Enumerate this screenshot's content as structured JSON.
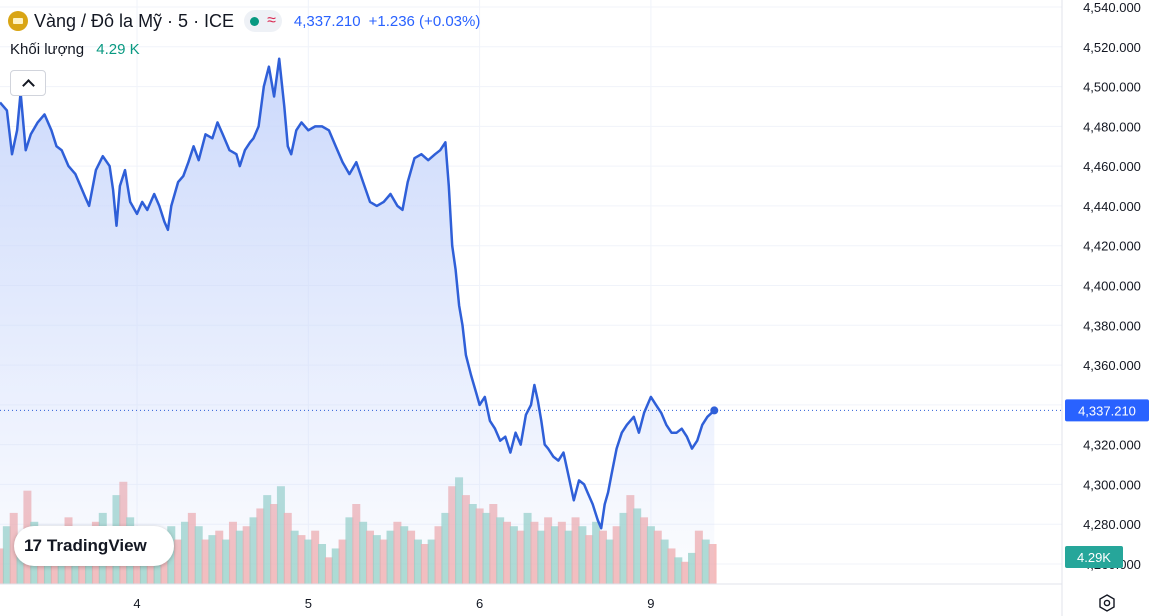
{
  "header": {
    "symbol": "Vàng / Đô la Mỹ · 5 · ICE",
    "approx_symbol": "≈",
    "price": "4,337.210",
    "change": "+1.236 (+0.03%)",
    "volume_label": "Khối lượng",
    "volume_value": "4.29 K"
  },
  "logo_text": "TradingView",
  "colors": {
    "line": "#2f5fd8",
    "area_top": "#c9d7fb",
    "vol_up": "#8fcfc3",
    "vol_down": "#f2a5a5",
    "price_label_bg": "#2962ff",
    "volume_label_bg": "#26a69a"
  },
  "chart_data": {
    "type": "area",
    "ylim": [
      4260,
      4540
    ],
    "yticks": [
      4260,
      4280,
      4300,
      4320,
      4340,
      4360,
      4380,
      4400,
      4420,
      4440,
      4460,
      4480,
      4500,
      4520,
      4540
    ],
    "ytick_labels": [
      "4,260.000",
      "4,280.000",
      "4,300.000",
      "4,320.000",
      "4,340.000",
      "4,360.000",
      "4,380.000",
      "4,400.000",
      "4,420.000",
      "4,440.000",
      "4,460.000",
      "4,480.000",
      "4,500.000",
      "4,520.000",
      "4,540.000"
    ],
    "xlim": [
      3.2,
      9.4
    ],
    "xticks": [
      4,
      5,
      6,
      9
    ],
    "xtick_positions": [
      4,
      5,
      6,
      7
    ],
    "xtick_labels": [
      "4",
      "5",
      "6",
      "9"
    ],
    "last_price_label": "4,337.210",
    "last_volume_label": "4.29K",
    "series": [
      {
        "values": [
          [
            3.2,
            4492
          ],
          [
            3.24,
            4488
          ],
          [
            3.27,
            4466
          ],
          [
            3.3,
            4478
          ],
          [
            3.32,
            4497
          ],
          [
            3.35,
            4468
          ],
          [
            3.38,
            4476
          ],
          [
            3.42,
            4482
          ],
          [
            3.46,
            4486
          ],
          [
            3.5,
            4478
          ],
          [
            3.53,
            4470
          ],
          [
            3.56,
            4468
          ],
          [
            3.6,
            4460
          ],
          [
            3.64,
            4456
          ],
          [
            3.67,
            4450
          ],
          [
            3.7,
            4444
          ],
          [
            3.72,
            4440
          ],
          [
            3.76,
            4458
          ],
          [
            3.8,
            4465
          ],
          [
            3.84,
            4460
          ],
          [
            3.86,
            4448
          ],
          [
            3.88,
            4430
          ],
          [
            3.9,
            4450
          ],
          [
            3.93,
            4458
          ],
          [
            3.96,
            4442
          ],
          [
            4.0,
            4436
          ],
          [
            4.03,
            4442
          ],
          [
            4.06,
            4438
          ],
          [
            4.1,
            4446
          ],
          [
            4.13,
            4440
          ],
          [
            4.16,
            4432
          ],
          [
            4.18,
            4428
          ],
          [
            4.2,
            4440
          ],
          [
            4.24,
            4452
          ],
          [
            4.27,
            4455
          ],
          [
            4.3,
            4462
          ],
          [
            4.33,
            4470
          ],
          [
            4.36,
            4463
          ],
          [
            4.4,
            4476
          ],
          [
            4.44,
            4474
          ],
          [
            4.47,
            4482
          ],
          [
            4.5,
            4476
          ],
          [
            4.54,
            4468
          ],
          [
            4.58,
            4466
          ],
          [
            4.6,
            4460
          ],
          [
            4.63,
            4468
          ],
          [
            4.66,
            4472
          ],
          [
            4.68,
            4474
          ],
          [
            4.71,
            4480
          ],
          [
            4.74,
            4500
          ],
          [
            4.77,
            4510
          ],
          [
            4.8,
            4495
          ],
          [
            4.83,
            4514
          ],
          [
            4.86,
            4490
          ],
          [
            4.88,
            4470
          ],
          [
            4.9,
            4466
          ],
          [
            4.93,
            4478
          ],
          [
            4.96,
            4482
          ],
          [
            5.0,
            4478
          ],
          [
            5.04,
            4480
          ],
          [
            5.08,
            4480
          ],
          [
            5.12,
            4478
          ],
          [
            5.16,
            4470
          ],
          [
            5.2,
            4462
          ],
          [
            5.24,
            4456
          ],
          [
            5.28,
            4462
          ],
          [
            5.32,
            4452
          ],
          [
            5.36,
            4442
          ],
          [
            5.4,
            4440
          ],
          [
            5.44,
            4442
          ],
          [
            5.48,
            4446
          ],
          [
            5.52,
            4440
          ],
          [
            5.55,
            4438
          ],
          [
            5.58,
            4452
          ],
          [
            5.62,
            4464
          ],
          [
            5.66,
            4466
          ],
          [
            5.7,
            4463
          ],
          [
            5.74,
            4466
          ],
          [
            5.77,
            4468
          ],
          [
            5.8,
            4472
          ],
          [
            5.82,
            4450
          ],
          [
            5.84,
            4420
          ],
          [
            5.86,
            4408
          ],
          [
            5.88,
            4390
          ],
          [
            5.9,
            4380
          ],
          [
            5.92,
            4365
          ],
          [
            5.95,
            4355
          ],
          [
            5.98,
            4346
          ],
          [
            6.0,
            4340
          ],
          [
            6.03,
            4344
          ],
          [
            6.06,
            4332
          ],
          [
            6.09,
            4328
          ],
          [
            6.12,
            4322
          ],
          [
            6.15,
            4324
          ],
          [
            6.18,
            4316
          ],
          [
            6.21,
            4326
          ],
          [
            6.24,
            4320
          ],
          [
            6.27,
            4335
          ],
          [
            6.3,
            4340
          ],
          [
            6.32,
            4350
          ],
          [
            6.34,
            4342
          ],
          [
            6.36,
            4332
          ],
          [
            6.38,
            4320
          ],
          [
            6.4,
            4318
          ],
          [
            6.43,
            4314
          ],
          [
            6.46,
            4312
          ],
          [
            6.49,
            4316
          ],
          [
            6.52,
            4304
          ],
          [
            6.55,
            4292
          ],
          [
            6.58,
            4302
          ],
          [
            6.61,
            4300
          ],
          [
            6.63,
            4296
          ],
          [
            6.66,
            4290
          ],
          [
            6.69,
            4282
          ],
          [
            6.71,
            4278
          ],
          [
            6.73,
            4290
          ],
          [
            6.75,
            4296
          ],
          [
            6.77,
            4305
          ],
          [
            6.8,
            4318
          ],
          [
            6.83,
            4326
          ],
          [
            6.86,
            4330
          ],
          [
            6.9,
            4334
          ],
          [
            6.93,
            4326
          ],
          [
            6.96,
            4336
          ],
          [
            7.0,
            4344
          ],
          [
            7.03,
            4340
          ],
          [
            7.06,
            4336
          ],
          [
            7.09,
            4330
          ],
          [
            7.12,
            4326
          ],
          [
            7.15,
            4326
          ],
          [
            7.18,
            4328
          ],
          [
            7.21,
            4324
          ],
          [
            7.24,
            4318
          ],
          [
            7.27,
            4322
          ],
          [
            7.3,
            4330
          ],
          [
            7.33,
            4334
          ],
          [
            7.37,
            4337.21
          ]
        ]
      }
    ],
    "volume": {
      "ylim": [
        0,
        2.7
      ],
      "bars": [
        [
          3.2,
          0.8,
          0
        ],
        [
          3.24,
          1.3,
          1
        ],
        [
          3.28,
          1.6,
          0
        ],
        [
          3.32,
          1.1,
          1
        ],
        [
          3.36,
          2.1,
          0
        ],
        [
          3.4,
          1.4,
          1
        ],
        [
          3.44,
          1.0,
          0
        ],
        [
          3.48,
          1.2,
          1
        ],
        [
          3.52,
          0.9,
          0
        ],
        [
          3.56,
          1.1,
          1
        ],
        [
          3.6,
          1.5,
          0
        ],
        [
          3.64,
          1.3,
          1
        ],
        [
          3.68,
          1.0,
          0
        ],
        [
          3.72,
          1.2,
          1
        ],
        [
          3.76,
          1.4,
          0
        ],
        [
          3.8,
          1.6,
          1
        ],
        [
          3.84,
          1.2,
          0
        ],
        [
          3.88,
          2.0,
          1
        ],
        [
          3.92,
          2.3,
          0
        ],
        [
          3.96,
          1.5,
          1
        ],
        [
          4.0,
          1.2,
          0
        ],
        [
          4.04,
          1.0,
          1
        ],
        [
          4.08,
          0.8,
          0
        ],
        [
          4.12,
          0.9,
          1
        ],
        [
          4.16,
          1.1,
          0
        ],
        [
          4.2,
          1.3,
          1
        ],
        [
          4.24,
          1.0,
          0
        ],
        [
          4.28,
          1.4,
          1
        ],
        [
          4.32,
          1.6,
          0
        ],
        [
          4.36,
          1.3,
          1
        ],
        [
          4.4,
          1.0,
          0
        ],
        [
          4.44,
          1.1,
          1
        ],
        [
          4.48,
          1.2,
          0
        ],
        [
          4.52,
          1.0,
          1
        ],
        [
          4.56,
          1.4,
          0
        ],
        [
          4.6,
          1.2,
          1
        ],
        [
          4.64,
          1.3,
          0
        ],
        [
          4.68,
          1.5,
          1
        ],
        [
          4.72,
          1.7,
          0
        ],
        [
          4.76,
          2.0,
          1
        ],
        [
          4.8,
          1.8,
          0
        ],
        [
          4.84,
          2.2,
          1
        ],
        [
          4.88,
          1.6,
          0
        ],
        [
          4.92,
          1.2,
          1
        ],
        [
          4.96,
          1.1,
          0
        ],
        [
          5.0,
          1.0,
          1
        ],
        [
          5.04,
          1.2,
          0
        ],
        [
          5.08,
          0.9,
          1
        ],
        [
          5.12,
          0.6,
          0
        ],
        [
          5.16,
          0.8,
          1
        ],
        [
          5.2,
          1.0,
          0
        ],
        [
          5.24,
          1.5,
          1
        ],
        [
          5.28,
          1.8,
          0
        ],
        [
          5.32,
          1.4,
          1
        ],
        [
          5.36,
          1.2,
          0
        ],
        [
          5.4,
          1.1,
          1
        ],
        [
          5.44,
          1.0,
          0
        ],
        [
          5.48,
          1.2,
          1
        ],
        [
          5.52,
          1.4,
          0
        ],
        [
          5.56,
          1.3,
          1
        ],
        [
          5.6,
          1.2,
          0
        ],
        [
          5.64,
          1.0,
          1
        ],
        [
          5.68,
          0.9,
          0
        ],
        [
          5.72,
          1.0,
          1
        ],
        [
          5.76,
          1.3,
          0
        ],
        [
          5.8,
          1.6,
          1
        ],
        [
          5.84,
          2.2,
          0
        ],
        [
          5.88,
          2.4,
          1
        ],
        [
          5.92,
          2.0,
          0
        ],
        [
          5.96,
          1.8,
          1
        ],
        [
          6.0,
          1.7,
          0
        ],
        [
          6.04,
          1.6,
          1
        ],
        [
          6.08,
          1.8,
          0
        ],
        [
          6.12,
          1.5,
          1
        ],
        [
          6.16,
          1.4,
          0
        ],
        [
          6.2,
          1.3,
          1
        ],
        [
          6.24,
          1.2,
          0
        ],
        [
          6.28,
          1.6,
          1
        ],
        [
          6.32,
          1.4,
          0
        ],
        [
          6.36,
          1.2,
          1
        ],
        [
          6.4,
          1.5,
          0
        ],
        [
          6.44,
          1.3,
          1
        ],
        [
          6.48,
          1.4,
          0
        ],
        [
          6.52,
          1.2,
          1
        ],
        [
          6.56,
          1.5,
          0
        ],
        [
          6.6,
          1.3,
          1
        ],
        [
          6.64,
          1.1,
          0
        ],
        [
          6.68,
          1.4,
          1
        ],
        [
          6.72,
          1.2,
          0
        ],
        [
          6.76,
          1.0,
          1
        ],
        [
          6.8,
          1.3,
          0
        ],
        [
          6.84,
          1.6,
          1
        ],
        [
          6.88,
          2.0,
          0
        ],
        [
          6.92,
          1.7,
          1
        ],
        [
          6.96,
          1.5,
          0
        ],
        [
          7.0,
          1.3,
          1
        ],
        [
          7.04,
          1.2,
          0
        ],
        [
          7.08,
          1.0,
          1
        ],
        [
          7.12,
          0.8,
          0
        ],
        [
          7.16,
          0.6,
          1
        ],
        [
          7.2,
          0.5,
          0
        ],
        [
          7.24,
          0.7,
          1
        ],
        [
          7.28,
          1.2,
          0
        ],
        [
          7.32,
          1.0,
          1
        ],
        [
          7.36,
          0.9,
          0
        ]
      ]
    }
  }
}
